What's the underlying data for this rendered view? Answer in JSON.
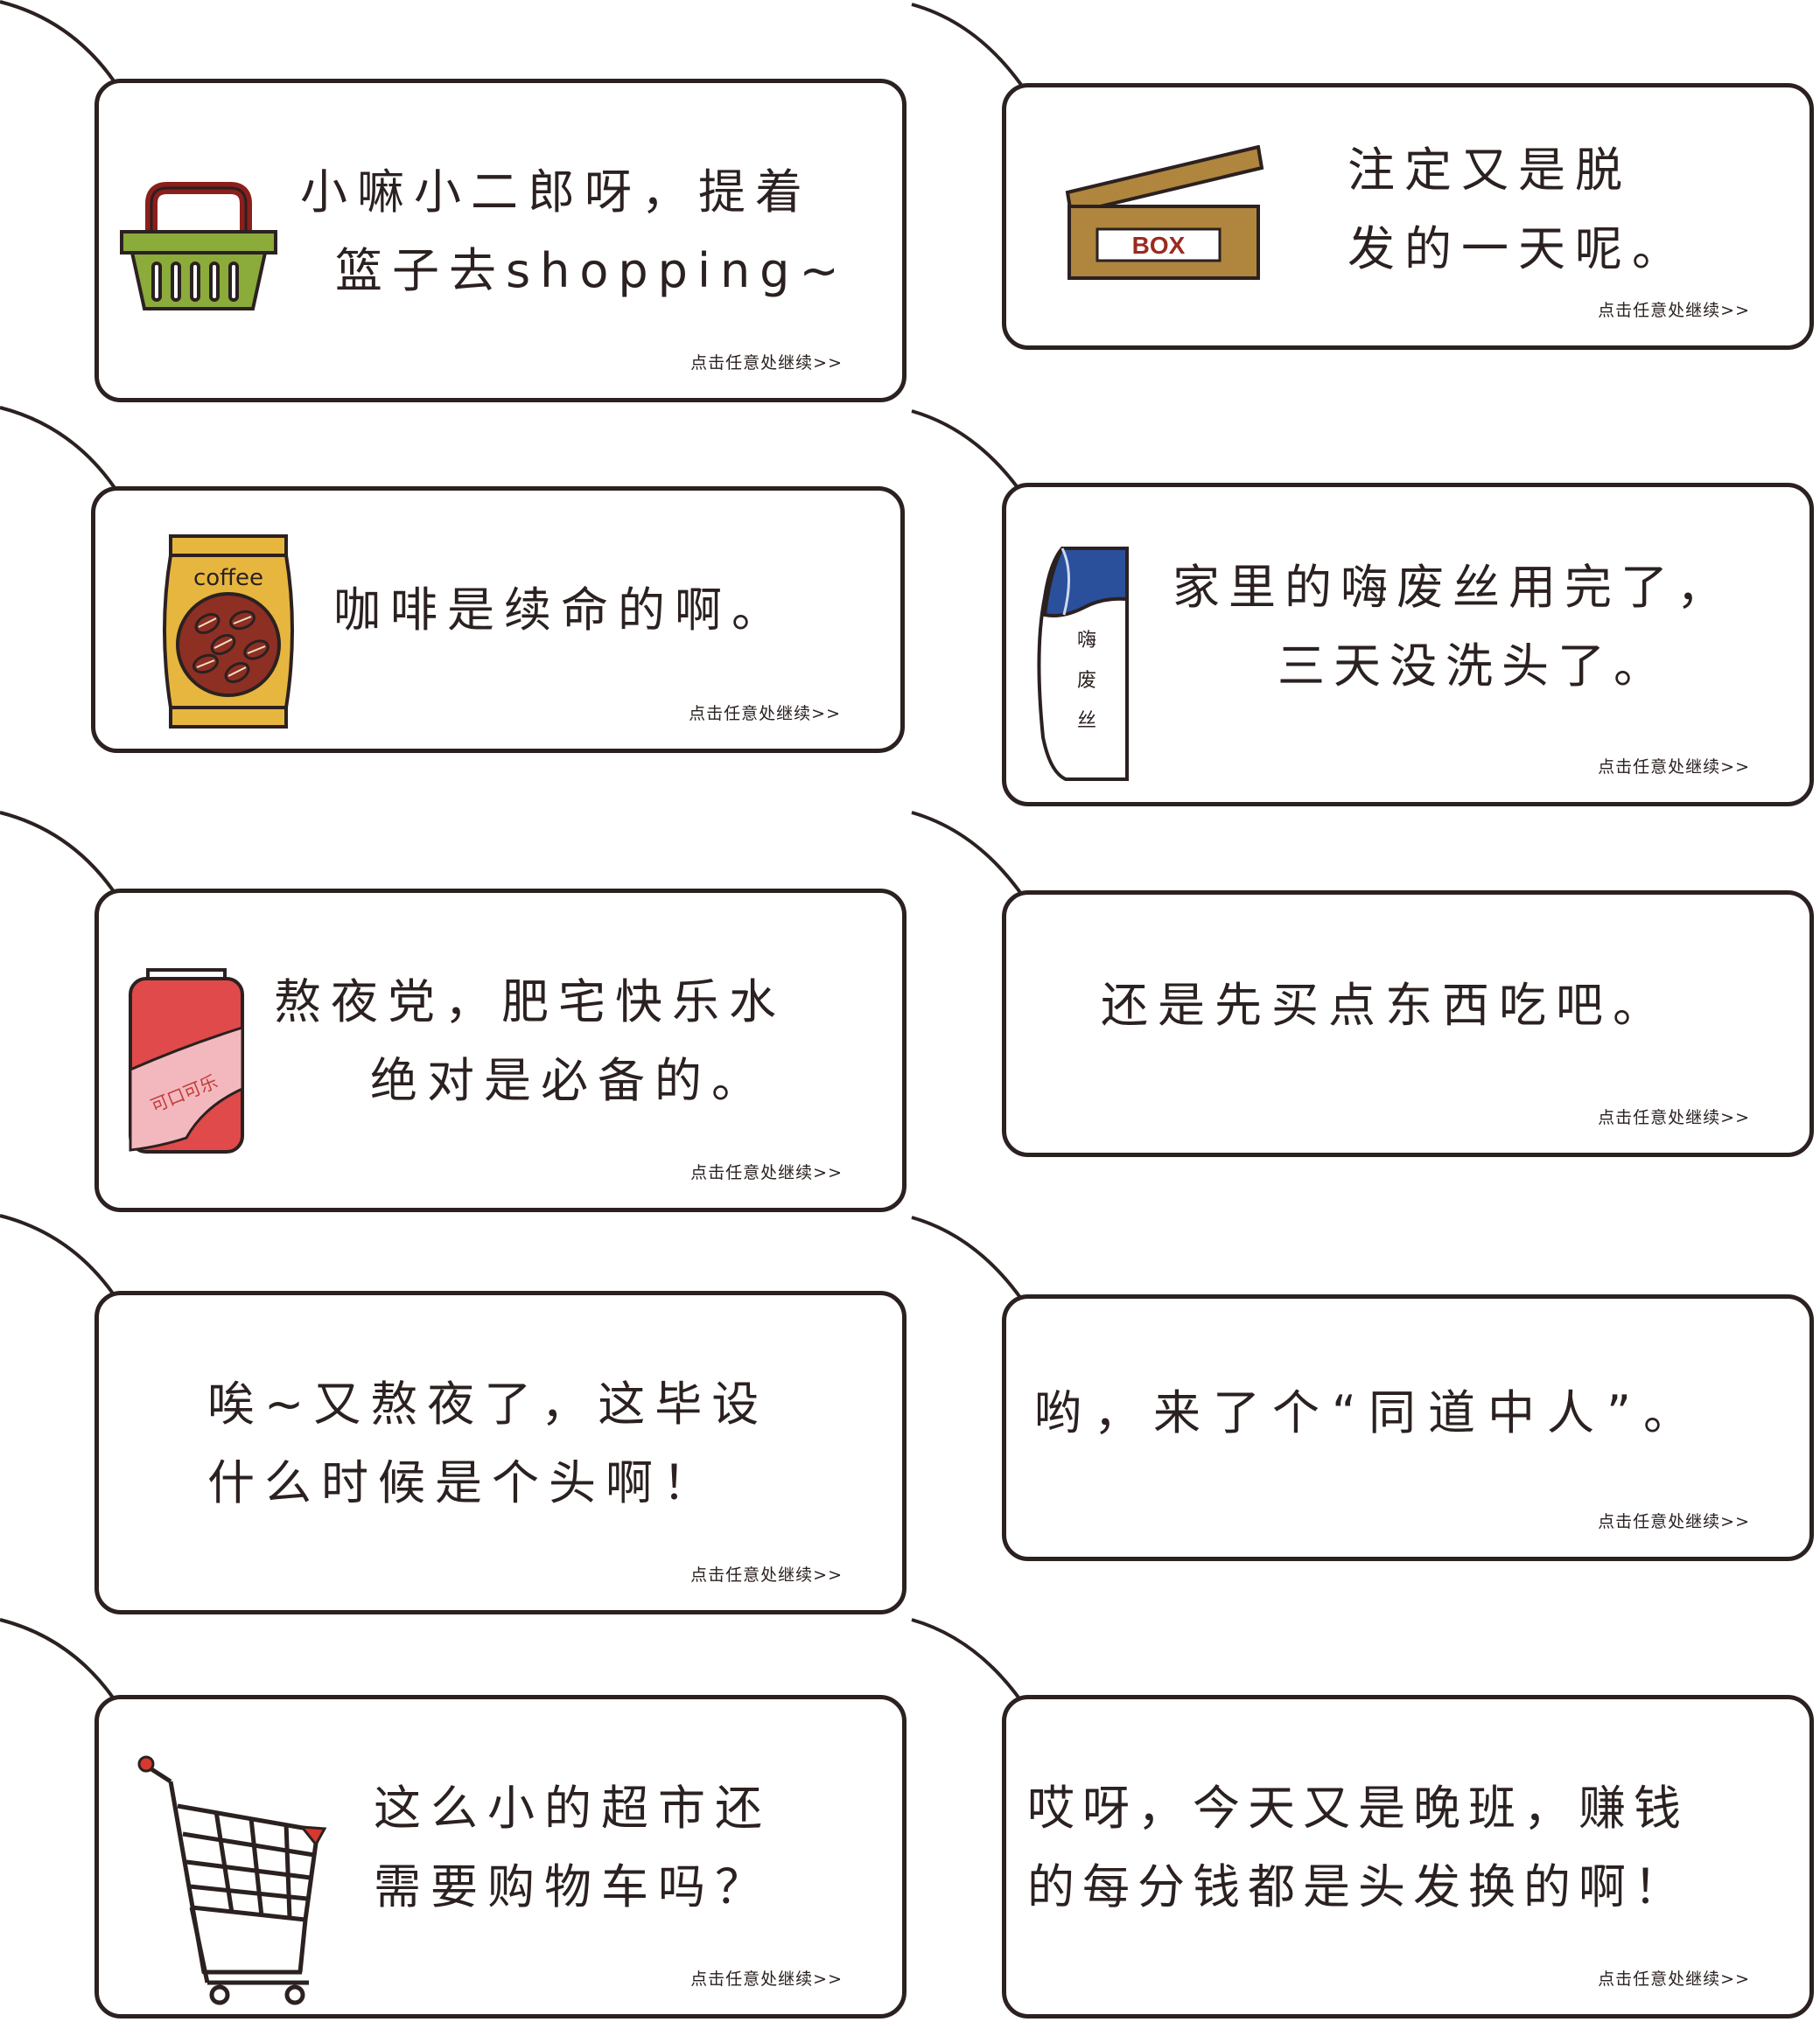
{
  "continue_hint": "点击任意处继续>>",
  "cards": [
    {
      "line1": "小嘛小二郎呀，提着",
      "line2": "篮子去shopping~",
      "icon": "basket-icon"
    },
    {
      "line1": "注定又是脱",
      "line2": "发的一天呢。",
      "icon": "box-icon",
      "icon_label": "BOX"
    },
    {
      "line1": "咖啡是续命的啊。",
      "line2": "",
      "icon": "coffee-bag-icon",
      "icon_label": "coffee"
    },
    {
      "line1": "家里的嗨废丝用完了，",
      "line2": "三天没洗头了。",
      "icon": "shampoo-bottle-icon",
      "icon_label": "嗨废丝"
    },
    {
      "line1": "熬夜党，肥宅快乐水",
      "line2": "绝对是必备的。",
      "icon": "cola-can-icon",
      "icon_label": "可口可乐"
    },
    {
      "line1": "还是先买点东西吃吧。",
      "line2": ""
    },
    {
      "line1": "唉~又熬夜了，这毕设",
      "line2": "什么时候是个头啊！"
    },
    {
      "line1": "哟，来了个“同道中人”。",
      "line2": ""
    },
    {
      "line1": "这么小的超市还",
      "line2": "需要购物车吗？",
      "icon": "shopping-cart-icon"
    },
    {
      "line1": "哎呀，今天又是晚班，赚钱",
      "line2": "的每分钱都是头发换的啊！"
    }
  ],
  "colors": {
    "ink": "#2b2120",
    "basket_green": "#8bab3b",
    "basket_handle": "#8b1f1c",
    "box_brown": "#b0853d",
    "box_text": "#9b2a20",
    "coffee_yellow": "#e7b63f",
    "coffee_bean": "#8e2f24",
    "shampoo_blue": "#2a4f9b",
    "cola_red": "#e04a4a",
    "cola_pink": "#f3b8bd",
    "cart_red": "#d9382e"
  }
}
